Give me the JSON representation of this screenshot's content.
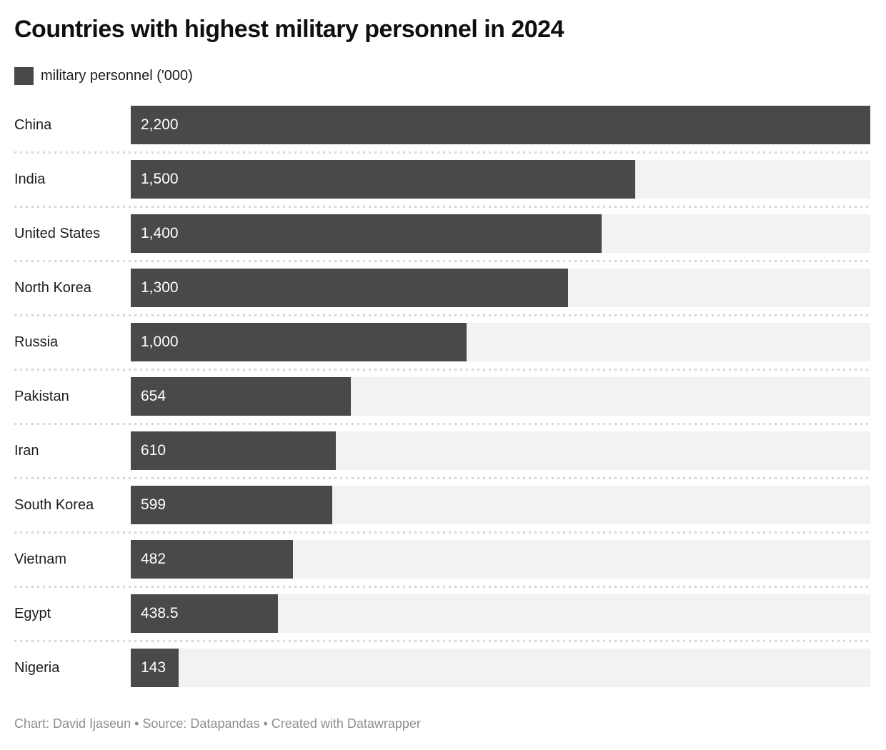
{
  "title": "Countries with highest military personnel in 2024",
  "legend": {
    "label": "military personnel ('000)"
  },
  "footer": {
    "text": "Chart: David Ijaseun • Source: Datapandas • Created with Datawrapper"
  },
  "colors": {
    "bar": "#494949",
    "track": "#f2f2f2",
    "separator_dots": "#d7d7d7",
    "value_text": "#ffffff",
    "footer_text": "#8e8e8e"
  },
  "chart_data": {
    "type": "bar",
    "orientation": "horizontal",
    "title": "Countries with highest military personnel in 2024",
    "legend_entries": [
      "military personnel ('000)"
    ],
    "categories": [
      "China",
      "India",
      "United States",
      "North Korea",
      "Russia",
      "Pakistan",
      "Iran",
      "South Korea",
      "Vietnam",
      "Egypt",
      "Nigeria"
    ],
    "values": [
      2200,
      1500,
      1400,
      1300,
      1000,
      654,
      610,
      599,
      482,
      438.5,
      143
    ],
    "value_labels": [
      "2,200",
      "1,500",
      "1,400",
      "1,300",
      "1,000",
      "654",
      "610",
      "599",
      "482",
      "438.5",
      "143"
    ],
    "xlabel": "",
    "ylabel": "",
    "xlim": [
      0,
      2200
    ],
    "grid": false,
    "legend_position": "top-left",
    "value_label_position": "inside-start"
  }
}
